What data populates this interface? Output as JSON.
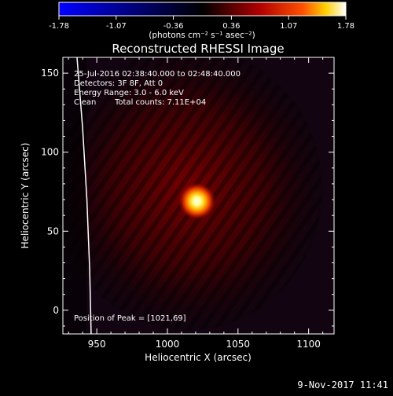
{
  "colorbar": {
    "min": -1.78,
    "max": 1.78,
    "ticks": [
      "-1.78",
      "-1.07",
      "-0.36",
      "0.36",
      "1.07",
      "1.78"
    ],
    "colormap": "blue-black-red-yellow-white",
    "stops": [
      "#0000ff",
      "#000000",
      "#b00000",
      "#ff5000",
      "#ffd000",
      "#ffffff"
    ]
  },
  "chart_data": {
    "type": "heatmap",
    "title": "Reconstructed RHESSI Image",
    "units_label": "(photons cm⁻² s⁻¹ asec⁻²)",
    "xlabel": "Heliocentric X (arcsec)",
    "ylabel": "Heliocentric Y (arcsec)",
    "xlim": [
      926,
      1118
    ],
    "ylim": [
      -15,
      160
    ],
    "xticks": [
      950,
      1000,
      1050,
      1100
    ],
    "yticks": [
      0,
      50,
      100,
      150
    ],
    "peak": {
      "x": 1021,
      "y": 69
    },
    "annotations": [
      "25-Jul-2016 02:38:40.000 to 02:48:40.000",
      "Detectors: 3F 8F, Att 0",
      "Energy Range: 3.0 - 6.0 keV",
      "Clean",
      "Total counts: 7.11E+04"
    ],
    "peak_label": "Position of Peak = [1021,69]",
    "limb": [
      [
        936,
        160
      ],
      [
        940,
        115
      ],
      [
        943,
        70
      ],
      [
        945,
        25
      ],
      [
        946,
        -15
      ]
    ]
  },
  "footer": {
    "timestamp": "9-Nov-2017 11:41"
  }
}
